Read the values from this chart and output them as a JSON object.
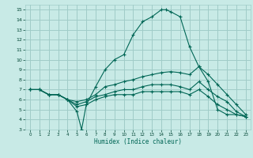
{
  "xlabel": "Humidex (Indice chaleur)",
  "xlim": [
    -0.5,
    23.5
  ],
  "ylim": [
    3,
    15.5
  ],
  "yticks": [
    3,
    4,
    5,
    6,
    7,
    8,
    9,
    10,
    11,
    12,
    13,
    14,
    15
  ],
  "xticks": [
    0,
    1,
    2,
    3,
    4,
    5,
    6,
    7,
    8,
    9,
    10,
    11,
    12,
    13,
    14,
    15,
    16,
    17,
    18,
    19,
    20,
    21,
    22,
    23
  ],
  "bg_color": "#c8eae6",
  "grid_color": "#a0ccc8",
  "line_color": "#006655",
  "lines": [
    {
      "x": [
        0,
        1,
        2,
        3,
        4,
        5,
        5.5,
        6,
        7,
        8,
        9,
        10,
        11,
        12,
        13,
        14,
        14.5,
        15,
        16,
        17,
        18,
        19,
        20,
        21,
        22,
        23
      ],
      "y": [
        7.0,
        7.0,
        6.5,
        6.5,
        6.0,
        4.8,
        3.0,
        5.5,
        7.3,
        9.0,
        10.0,
        10.5,
        12.5,
        13.8,
        14.3,
        15.0,
        15.0,
        14.8,
        14.3,
        11.3,
        9.3,
        7.8,
        5.0,
        4.5,
        4.5,
        4.3
      ]
    },
    {
      "x": [
        0,
        1,
        2,
        3,
        4,
        5,
        6,
        7,
        8,
        9,
        10,
        11,
        12,
        13,
        14,
        15,
        16,
        17,
        18,
        19,
        20,
        21,
        22,
        23
      ],
      "y": [
        7.0,
        7.0,
        6.5,
        6.5,
        6.0,
        5.8,
        6.0,
        6.5,
        7.3,
        7.5,
        7.8,
        8.0,
        8.3,
        8.5,
        8.7,
        8.8,
        8.7,
        8.5,
        9.3,
        8.5,
        7.5,
        6.5,
        5.5,
        4.5
      ]
    },
    {
      "x": [
        0,
        1,
        2,
        3,
        4,
        5,
        6,
        7,
        8,
        9,
        10,
        11,
        12,
        13,
        14,
        15,
        16,
        17,
        18,
        19,
        20,
        21,
        22,
        23
      ],
      "y": [
        7.0,
        7.0,
        6.5,
        6.5,
        6.0,
        5.5,
        5.8,
        6.3,
        6.5,
        6.8,
        7.0,
        7.0,
        7.3,
        7.5,
        7.5,
        7.5,
        7.3,
        7.0,
        7.8,
        7.0,
        6.3,
        5.8,
        4.8,
        4.3
      ]
    },
    {
      "x": [
        0,
        1,
        2,
        3,
        4,
        5,
        6,
        7,
        8,
        9,
        10,
        11,
        12,
        13,
        14,
        15,
        16,
        17,
        18,
        19,
        20,
        21,
        22,
        23
      ],
      "y": [
        7.0,
        7.0,
        6.5,
        6.5,
        6.0,
        5.3,
        5.5,
        6.0,
        6.3,
        6.5,
        6.5,
        6.5,
        6.8,
        6.8,
        6.8,
        6.8,
        6.8,
        6.5,
        7.0,
        6.3,
        5.5,
        5.0,
        4.5,
        4.3
      ]
    }
  ]
}
